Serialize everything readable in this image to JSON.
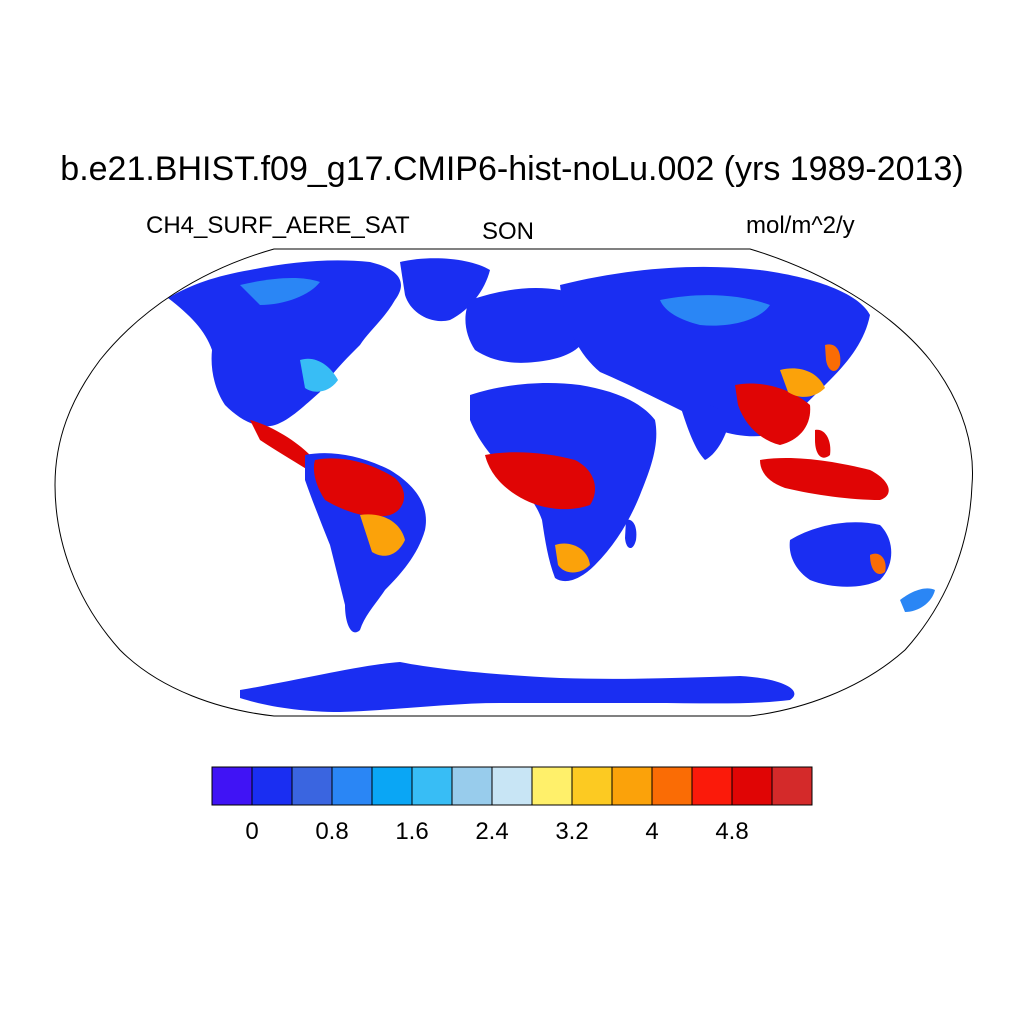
{
  "title": "b.e21.BHIST.f09_g17.CMIP6-hist-noLu.002 (yrs 1989-2013)",
  "variable": "CH4_SURF_AERE_SAT",
  "season": "SON",
  "units": "mol/m^2/y",
  "map": {
    "projection": "Robinson",
    "ocean_color": "#ffffff",
    "coastline_color": "#000000"
  },
  "colorbar": {
    "colors": [
      "#4013f5",
      "#1a2ef2",
      "#3a65e0",
      "#2a86f5",
      "#0aa6f5",
      "#38bdf5",
      "#98ccec",
      "#c8e5f5",
      "#fff06a",
      "#fcca22",
      "#fba20a",
      "#fa6c05",
      "#fb1a0a",
      "#e00505",
      "#d42a2a"
    ],
    "tick_labels": [
      "0",
      "0.8",
      "1.6",
      "2.4",
      "3.2",
      "4",
      "4.8"
    ],
    "tick_levels": [
      0,
      0.8,
      1.6,
      2.4,
      3.2,
      4.0,
      4.8
    ],
    "levels": [
      0,
      0.4,
      0.8,
      1.2,
      1.6,
      2.0,
      2.4,
      2.8,
      3.2,
      3.6,
      4.0,
      4.4,
      4.8,
      5.2
    ]
  }
}
